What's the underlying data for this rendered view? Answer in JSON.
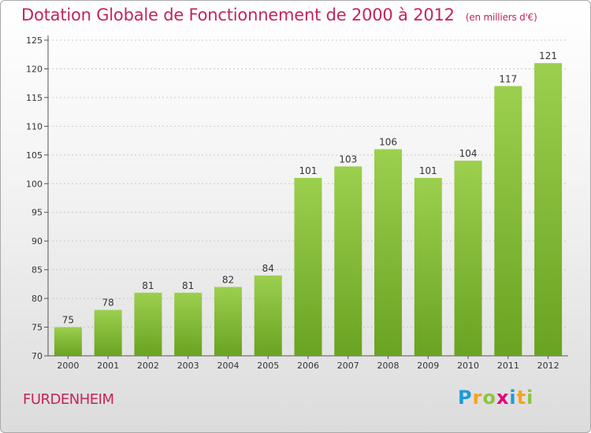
{
  "header": {
    "title": "Dotation Globale de Fonctionnement de 2000 à 2012",
    "unit": "(en milliers d'€)"
  },
  "footer": {
    "commune": "FURDENHEIM",
    "brand_letters": [
      "P",
      "r",
      "o",
      "x",
      "i",
      "t",
      "i"
    ],
    "brand_colors": [
      "#1e9bd7",
      "#f7a21c",
      "#8cc63f",
      "#e3007a",
      "#1e9bd7",
      "#f7a21c",
      "#8cc63f"
    ]
  },
  "colors": {
    "bar_top": "#9ccf4e",
    "bar_bottom": "#6aa321",
    "grid": "#c8c8c8",
    "text": "#333333"
  },
  "chart_data": {
    "type": "bar",
    "categories": [
      "2000",
      "2001",
      "2002",
      "2003",
      "2004",
      "2005",
      "2006",
      "2007",
      "2008",
      "2009",
      "2010",
      "2011",
      "2012"
    ],
    "values": [
      75,
      78,
      81,
      81,
      82,
      84,
      101,
      103,
      106,
      101,
      104,
      117,
      121
    ],
    "title": "Dotation Globale de Fonctionnement de 2000 à 2012",
    "xlabel": "",
    "ylabel": "",
    "ylim": [
      70,
      125
    ],
    "yticks": [
      70,
      75,
      80,
      85,
      90,
      95,
      100,
      105,
      110,
      115,
      120,
      125
    ],
    "grid": true,
    "data_labels": true
  }
}
